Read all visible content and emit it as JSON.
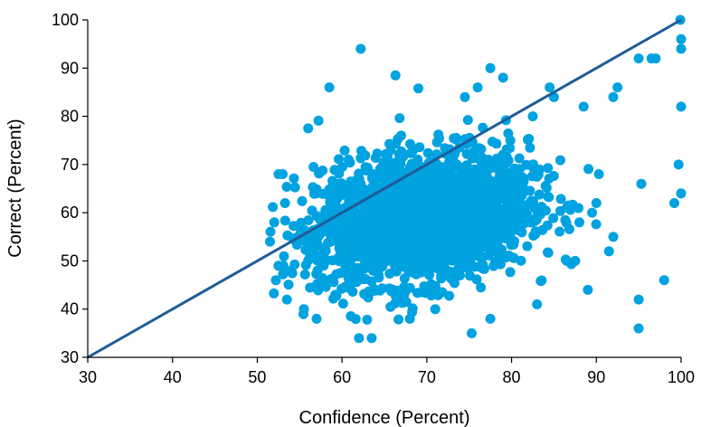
{
  "chart_data": {
    "type": "scatter",
    "title": "",
    "xlabel": "Confidence (Percent)",
    "ylabel": "Correct (Percent)",
    "xlim": [
      30,
      100
    ],
    "ylim": [
      30,
      100
    ],
    "xticks": [
      30,
      40,
      50,
      60,
      70,
      80,
      90,
      100
    ],
    "yticks": [
      30,
      40,
      50,
      60,
      70,
      80,
      90,
      100
    ],
    "grid": false,
    "legend": "none",
    "point_color": "#00A2E0",
    "reference_line": {
      "type": "identity",
      "color": "#1F5C99",
      "label": ""
    },
    "series": [
      {
        "points": [
          [
            62.2,
            94
          ],
          [
            58.5,
            86
          ],
          [
            77.5,
            90
          ],
          [
            99.9,
            100
          ],
          [
            100,
            96
          ],
          [
            100,
            94
          ],
          [
            96.5,
            92
          ],
          [
            97,
            92
          ],
          [
            95,
            92
          ],
          [
            92.5,
            86
          ],
          [
            92,
            84
          ],
          [
            100,
            82
          ],
          [
            99.7,
            70
          ],
          [
            100,
            64
          ],
          [
            99.2,
            62
          ],
          [
            95.3,
            66
          ],
          [
            98,
            46
          ],
          [
            95,
            42
          ],
          [
            95,
            36
          ],
          [
            89,
            44
          ],
          [
            92,
            55
          ],
          [
            91.5,
            52
          ],
          [
            62,
            34
          ],
          [
            63.5,
            34
          ],
          [
            75.3,
            35
          ],
          [
            51.5,
            54
          ],
          [
            52,
            58
          ],
          [
            52.5,
            68
          ],
          [
            53,
            68
          ],
          [
            52.5,
            49
          ],
          [
            53.5,
            42
          ],
          [
            54,
            48
          ],
          [
            56,
            77.5
          ],
          [
            66.3,
            88.5
          ],
          [
            69,
            85.8
          ],
          [
            74.5,
            84
          ],
          [
            76,
            86
          ],
          [
            79,
            88
          ],
          [
            85,
            84
          ],
          [
            84.5,
            86
          ],
          [
            82.5,
            80
          ],
          [
            88.5,
            82
          ],
          [
            90.3,
            68
          ],
          [
            90,
            62
          ],
          [
            89.5,
            60
          ],
          [
            88,
            58
          ],
          [
            86.5,
            50
          ],
          [
            87.5,
            50
          ],
          [
            83,
            41
          ],
          [
            77.5,
            38
          ],
          [
            68,
            38
          ],
          [
            71,
            40
          ],
          [
            57,
            38
          ],
          [
            55.5,
            40
          ]
        ]
      }
    ],
    "cloud": {
      "count": 2400,
      "center": [
        69.5,
        59
      ],
      "spread": [
        6.2,
        6.5
      ],
      "x_range": [
        51.5,
        92
      ],
      "y_range": [
        36,
        82
      ]
    }
  }
}
